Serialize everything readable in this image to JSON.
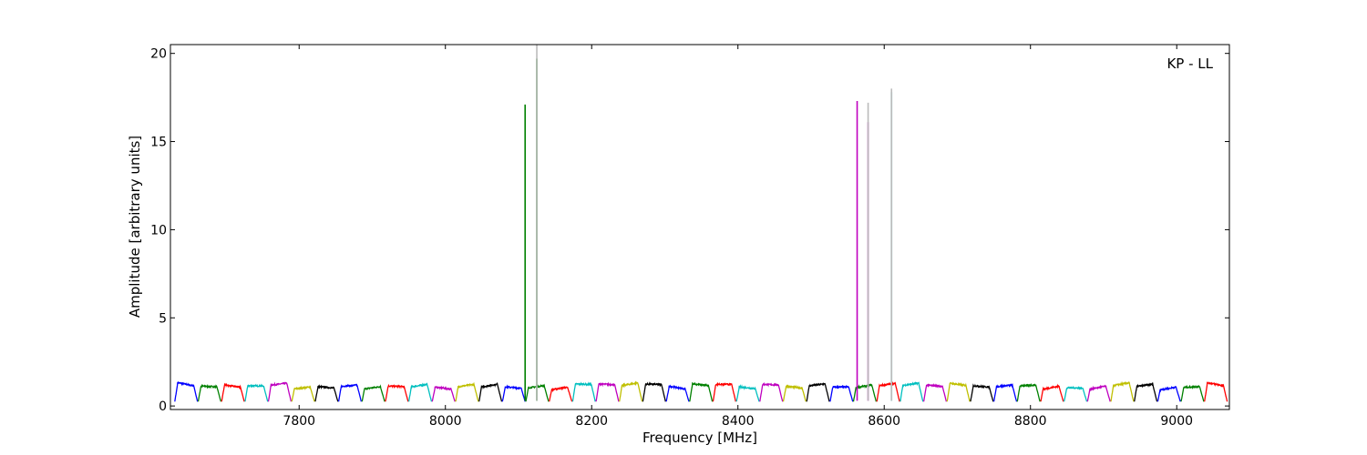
{
  "chart_data": {
    "type": "line",
    "xlabel": "Frequency [MHz]",
    "ylabel": "Amplitude [arbitrary units]",
    "annotation": "KP - LL",
    "annotation_position": "top-right",
    "xlim": [
      7624,
      9072
    ],
    "ylim": [
      -0.2,
      20.5
    ],
    "xticks": [
      7800,
      8000,
      8200,
      8400,
      8600,
      8800,
      9000
    ],
    "yticks": [
      0,
      5,
      10,
      15,
      20
    ],
    "grid": false,
    "channel_width_mhz": 32,
    "channel_count": 45,
    "start_freq": 7630,
    "series_colors": [
      "#0000ff",
      "#008000",
      "#ff0000",
      "#00bfbf",
      "#bf00bf",
      "#bfbf00",
      "#000000"
    ],
    "spikes": [
      {
        "x": 8109,
        "y": 17.1,
        "color": "#008000"
      },
      {
        "x": 8125,
        "y": 19.7,
        "color": "#008000"
      },
      {
        "x": 8125,
        "y": 20.5,
        "color": "#bbbbbb"
      },
      {
        "x": 8563,
        "y": 17.3,
        "color": "#bf00bf"
      },
      {
        "x": 8578,
        "y": 16.1,
        "color": "#bf00bf"
      },
      {
        "x": 8578,
        "y": 17.2,
        "color": "#bbbbbb"
      },
      {
        "x": 8610,
        "y": 17.8,
        "color": "#00bfbf"
      },
      {
        "x": 8610,
        "y": 18.0,
        "color": "#bbbbbb"
      }
    ]
  }
}
